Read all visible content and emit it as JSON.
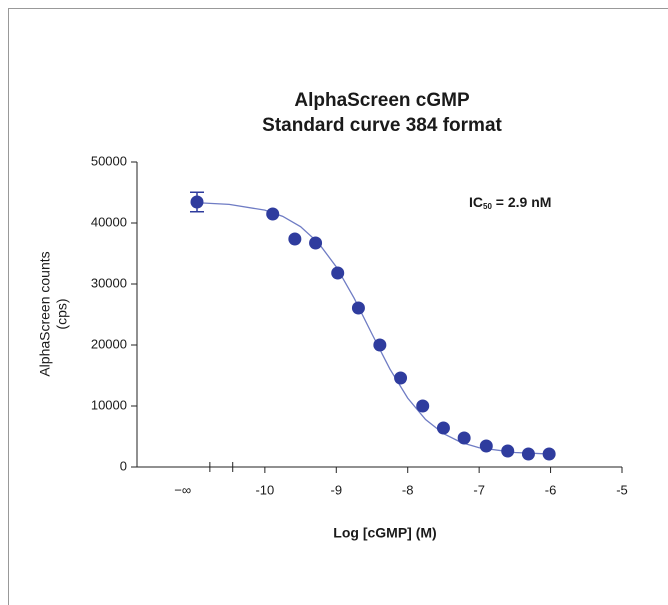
{
  "chart_data": {
    "type": "scatter",
    "title": [
      "AlphaScreen cGMP",
      "Standard curve 384 format"
    ],
    "x_label": "Log [cGMP] (M)",
    "y_label": [
      "AlphaScreen counts",
      "(cps)"
    ],
    "annotation": {
      "text": "IC",
      "subscript": "50",
      "rest": " = 2.9 nM"
    },
    "xlim": [
      -11.79,
      -5
    ],
    "ylim": [
      0,
      50000
    ],
    "xticks": [
      {
        "value": -11.15,
        "label": "−∞"
      },
      -10,
      -9,
      -8,
      -7,
      -6,
      -5
    ],
    "yticks": [
      0,
      10000,
      20000,
      30000,
      40000,
      50000
    ],
    "axis_breaks": [
      -10.77,
      -10.45
    ],
    "series": [
      {
        "color": "#2f3c9e",
        "x": [
          -10.95,
          -9.89,
          -9.58,
          -9.29,
          -8.98,
          -8.69,
          -8.39,
          -8.1,
          -7.79,
          -7.5,
          -7.21,
          -6.9,
          -6.6,
          -6.31,
          -6.02
        ],
        "values": [
          43440,
          41480,
          37380,
          36720,
          31800,
          26070,
          20000,
          14590,
          10000,
          6390,
          4750,
          3440,
          2620,
          2130,
          2130
        ],
        "errors": [
          1600,
          null,
          null,
          null,
          null,
          null,
          null,
          null,
          null,
          null,
          null,
          null,
          null,
          null,
          null
        ]
      }
    ],
    "curve": {
      "color": "#6f7cc4",
      "x": [
        -11,
        -10.5,
        -10,
        -9.75,
        -9.5,
        -9.25,
        -9,
        -8.75,
        -8.5,
        -8.25,
        -8,
        -7.75,
        -7.5,
        -7.25,
        -7,
        -6.5,
        -6
      ],
      "values": [
        43360,
        43050,
        42110,
        41090,
        39400,
        36730,
        32820,
        27670,
        21800,
        16070,
        11290,
        7790,
        5470,
        4020,
        3160,
        2380,
        2120
      ]
    }
  }
}
